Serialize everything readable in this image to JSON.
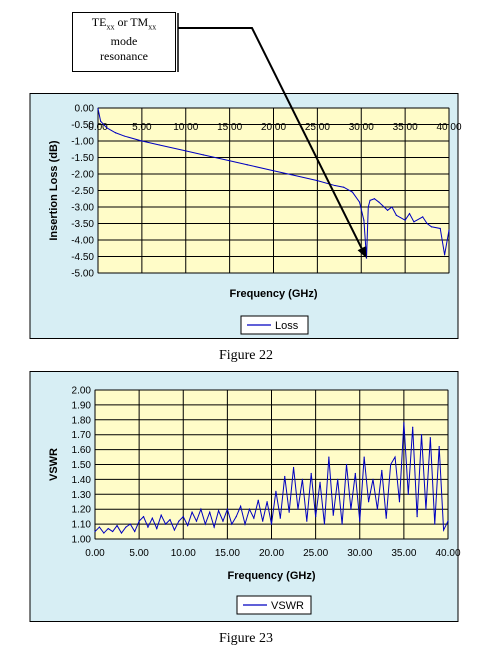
{
  "annotation": {
    "prefix1": "TE",
    "sub1": "xx",
    "mid": " or TM",
    "sub2": "xx",
    "line2": "mode",
    "line3": "resonance"
  },
  "captions": {
    "fig22": "Figure 22",
    "fig23": "Figure 23"
  },
  "colors": {
    "outer_bg": "#d7eef4",
    "plot_bg": "#fffcc8",
    "series": "#0000c0",
    "grid": "#000000"
  },
  "chart_data": [
    {
      "type": "line",
      "xlabel": "Frequency (GHz)",
      "ylabel": "Insertion Loss (dB)",
      "xlim": [
        0,
        40
      ],
      "ylim": [
        -5,
        0
      ],
      "x_ticks": [
        "0.00",
        "5.00",
        "10.00",
        "15.00",
        "20.00",
        "25.00",
        "30.00",
        "35.00",
        "40.00"
      ],
      "y_ticks": [
        "0.00",
        "-0.50",
        "-1.00",
        "-1.50",
        "-2.00",
        "-2.50",
        "-3.00",
        "-3.50",
        "-4.00",
        "-4.50",
        "-5.00"
      ],
      "grid": true,
      "legend_position": "bottom",
      "series": [
        {
          "name": "Loss",
          "x": [
            0.0,
            0.3,
            1,
            2,
            3,
            5,
            7,
            10,
            12,
            15,
            17,
            20,
            22,
            25,
            27,
            28,
            29,
            29.8,
            30.3,
            30.6,
            30.8,
            31,
            31.5,
            32,
            33,
            33.5,
            34,
            35,
            35.5,
            36,
            37,
            37.5,
            38,
            39,
            39.5,
            40
          ],
          "y": [
            -0.02,
            -0.4,
            -0.6,
            -0.75,
            -0.85,
            -1.0,
            -1.12,
            -1.3,
            -1.42,
            -1.6,
            -1.72,
            -1.9,
            -2.02,
            -2.2,
            -2.35,
            -2.4,
            -2.55,
            -2.85,
            -3.4,
            -4.55,
            -3.0,
            -2.8,
            -2.75,
            -2.85,
            -3.1,
            -3.0,
            -3.25,
            -3.4,
            -3.2,
            -3.45,
            -3.3,
            -3.5,
            -3.6,
            -3.65,
            -4.45,
            -3.7
          ]
        }
      ]
    },
    {
      "type": "line",
      "xlabel": "Frequency (GHz)",
      "ylabel": "VSWR",
      "xlim": [
        0,
        40
      ],
      "ylim": [
        1,
        2
      ],
      "x_ticks": [
        "0.00",
        "5.00",
        "10.00",
        "15.00",
        "20.00",
        "25.00",
        "30.00",
        "35.00",
        "40.00"
      ],
      "y_ticks": [
        "2.00",
        "1.90",
        "1.80",
        "1.70",
        "1.60",
        "1.50",
        "1.40",
        "1.30",
        "1.20",
        "1.10",
        "1.00"
      ],
      "grid": true,
      "legend_position": "bottom",
      "series": [
        {
          "name": "VSWR",
          "x": [
            0.0,
            0.5,
            1,
            1.5,
            2,
            2.5,
            3,
            3.5,
            4,
            4.5,
            5,
            5.5,
            6,
            6.5,
            7,
            7.5,
            8,
            8.5,
            9,
            9.5,
            10,
            10.5,
            11,
            11.5,
            12,
            12.5,
            13,
            13.5,
            14,
            14.5,
            15,
            15.5,
            16,
            16.5,
            17,
            17.5,
            18,
            18.5,
            19,
            19.5,
            20,
            20.5,
            21,
            21.5,
            22,
            22.5,
            23,
            23.5,
            24,
            24.5,
            25,
            25.5,
            26,
            26.5,
            27,
            27.5,
            28,
            28.5,
            29,
            29.5,
            30,
            30.5,
            31,
            31.5,
            32,
            32.5,
            33,
            33.5,
            34,
            34.5,
            35,
            35.5,
            36,
            36.5,
            37,
            37.5,
            38,
            38.5,
            39,
            39.5,
            40
          ],
          "y": [
            1.05,
            1.08,
            1.04,
            1.07,
            1.05,
            1.09,
            1.04,
            1.08,
            1.1,
            1.05,
            1.12,
            1.15,
            1.08,
            1.14,
            1.07,
            1.16,
            1.1,
            1.13,
            1.06,
            1.12,
            1.15,
            1.09,
            1.18,
            1.12,
            1.2,
            1.1,
            1.18,
            1.08,
            1.19,
            1.12,
            1.2,
            1.1,
            1.15,
            1.22,
            1.1,
            1.2,
            1.14,
            1.26,
            1.12,
            1.25,
            1.1,
            1.32,
            1.14,
            1.42,
            1.18,
            1.48,
            1.2,
            1.4,
            1.12,
            1.44,
            1.15,
            1.38,
            1.1,
            1.55,
            1.16,
            1.4,
            1.1,
            1.5,
            1.2,
            1.44,
            1.12,
            1.55,
            1.25,
            1.4,
            1.2,
            1.46,
            1.14,
            1.5,
            1.55,
            1.25,
            1.78,
            1.3,
            1.75,
            1.15,
            1.7,
            1.2,
            1.68,
            1.1,
            1.62,
            1.06,
            1.12
          ]
        }
      ]
    }
  ]
}
